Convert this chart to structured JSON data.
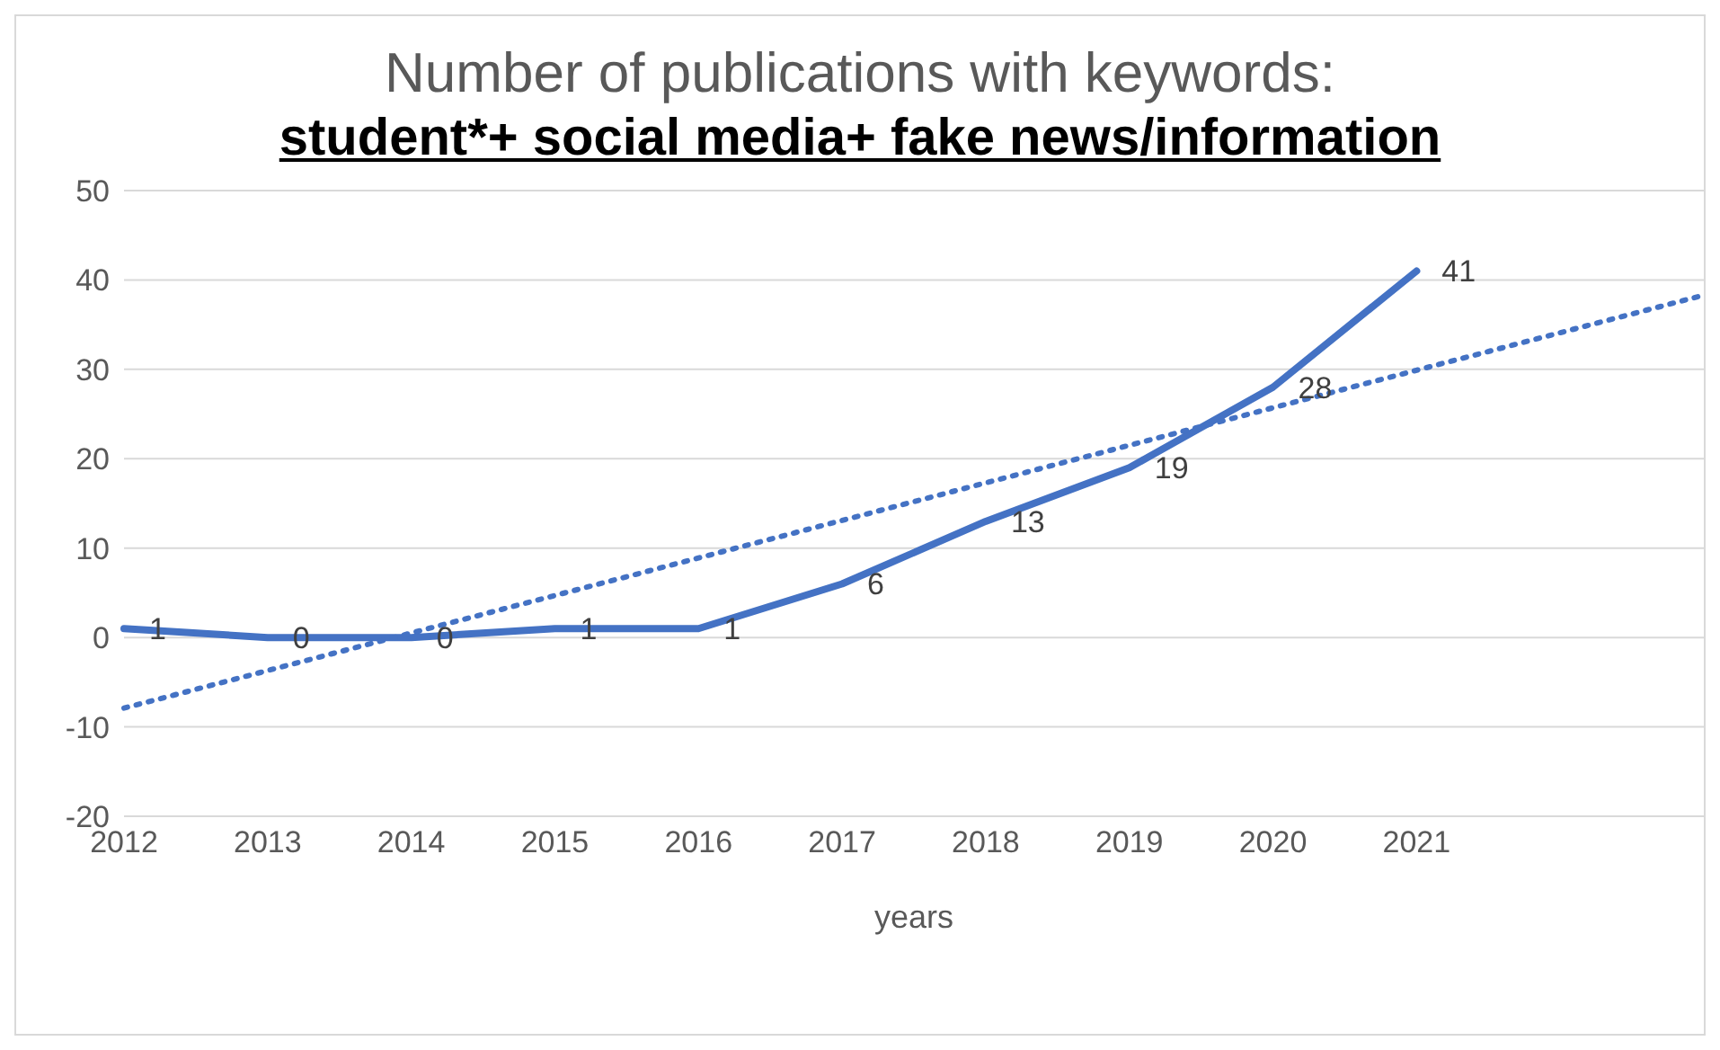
{
  "chart_data": {
    "type": "line",
    "title": "Number of publications with keywords:",
    "subtitle": "student*+ social media+ fake news/information",
    "xlabel": "years",
    "categories": [
      "2012",
      "2013",
      "2014",
      "2015",
      "2016",
      "2017",
      "2018",
      "2019",
      "2020",
      "2021",
      null,
      null
    ],
    "series": [
      {
        "color": "#4472c4",
        "values": [
          1,
          0,
          0,
          1,
          1,
          6,
          13,
          19,
          28,
          41,
          null,
          null
        ],
        "value_labels": [
          "1",
          "0",
          "0",
          "1",
          "1",
          "6",
          "13",
          "19",
          "28",
          "41",
          null,
          null
        ],
        "line_style": "solid"
      },
      {
        "type": "line",
        "color": "#4472c4",
        "values": [
          -7.9,
          -3.7,
          0.5,
          4.7,
          8.9,
          13.1,
          17.3,
          21.5,
          25.7,
          29.9,
          34.1,
          38.3
        ],
        "line_style": "dotted"
      }
    ],
    "ylim": [
      -20,
      50
    ],
    "yticks": [
      -20,
      -10,
      0,
      10,
      20,
      30,
      40,
      50
    ],
    "grid": "y",
    "marker": "none"
  }
}
